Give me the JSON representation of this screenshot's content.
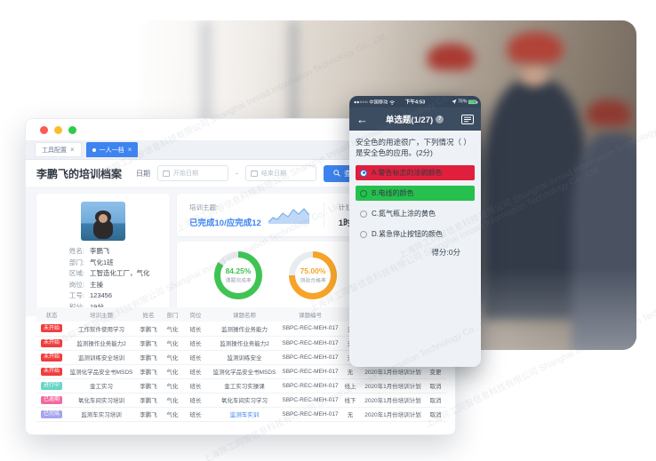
{
  "watermark": {
    "cn": "上海异工同智信息科技有限公司",
    "en": "Shanghai Inroad Information Technology Co., Ltd."
  },
  "desktop": {
    "tabs": [
      {
        "label": "工具配置",
        "close": "×",
        "active": false
      },
      {
        "label": "一人一档",
        "close": "×",
        "active": true
      }
    ],
    "toolbar": {
      "title": "李鹏飞的培训档案",
      "date_label": "日期",
      "start_placeholder": "开始日期",
      "end_placeholder": "结束日期",
      "range_separator": "-",
      "search_label": "查询"
    },
    "profile": {
      "fields": [
        {
          "label": "姓名:",
          "value": "李鹏飞"
        },
        {
          "label": "部门:",
          "value": "气化1班"
        },
        {
          "label": "区域:",
          "value": "工智造化工厂，气化"
        },
        {
          "label": "岗位:",
          "value": "主操"
        },
        {
          "label": "工号:",
          "value": "123456"
        },
        {
          "label": "积分:",
          "value": "19分"
        }
      ]
    },
    "summary": {
      "topic_label": "培训主题:",
      "topic_value": "已完成10/应完成12",
      "plan_label": "计划学习时长",
      "plan_value": "1时34分"
    },
    "donuts": [
      {
        "text": "84.25%",
        "value": 84.25,
        "label": "课题完成率",
        "color": "#3fc453"
      },
      {
        "text": "75.00%",
        "value": 75.0,
        "label": "测验合格率",
        "color": "#f5a429"
      }
    ],
    "table": {
      "headers": [
        "状态",
        "培训主题",
        "姓名",
        "部门",
        "岗位",
        "课题名称",
        "课题编号",
        "",
        "",
        ""
      ],
      "rows": [
        {
          "status": "未开始",
          "status_color": "#f23c3c",
          "topic": "工作软件使用学习",
          "name": "李鹏飞",
          "dept": "气化",
          "pos": "班长",
          "course": "监测操作业务能力",
          "link": false,
          "num": "SBPC-REC-MEH-017",
          "mode": "无",
          "plan": "2020年1月份培训计划",
          "op": "变更"
        },
        {
          "status": "未开始",
          "status_color": "#f23c3c",
          "topic": "监测操作业务能力2",
          "name": "李鹏飞",
          "dept": "气化",
          "pos": "班长",
          "course": "监测操作业务能力2",
          "link": false,
          "num": "SBPC-REC-MEH-017",
          "mode": "无",
          "plan": "2020年1月份培训计划",
          "op": "变更"
        },
        {
          "status": "未开始",
          "status_color": "#f23c3c",
          "topic": "监测训练安全培训",
          "name": "李鹏飞",
          "dept": "气化",
          "pos": "班长",
          "course": "监测训练安全",
          "link": false,
          "num": "SBPC-REC-MEH-017",
          "mode": "无",
          "plan": "2020年1月份培训计划",
          "op": "变更"
        },
        {
          "status": "未开始",
          "status_color": "#f23c3c",
          "topic": "监测化学品安全书MSDS",
          "name": "李鹏飞",
          "dept": "气化",
          "pos": "班长",
          "course": "监测化学品安全书MSDS",
          "link": false,
          "num": "SBPC-REC-MEH-017",
          "mode": "无",
          "plan": "2020年1月份培训计划",
          "op": "变更"
        },
        {
          "status": "进行中",
          "status_color": "#66d6c5",
          "topic": "金工实习",
          "name": "李鹏飞",
          "dept": "气化",
          "pos": "班长",
          "course": "金工实习实操课",
          "link": false,
          "num": "SBPC-REC-MEH-017",
          "mode": "线上",
          "plan": "2020年1月份培训计划",
          "op": "取消"
        },
        {
          "status": "已逾期",
          "status_color": "#f2699e",
          "topic": "氧化车间实习培训",
          "name": "李鹏飞",
          "dept": "气化",
          "pos": "班长",
          "course": "氧化车间实习学习",
          "link": false,
          "num": "SBPC-REC-MEH-017",
          "mode": "线下",
          "plan": "2020年1月份培训计划",
          "op": "取消"
        },
        {
          "status": "已完成",
          "status_color": "#a5a4f0",
          "topic": "监测车实习培训",
          "name": "李鹏飞",
          "dept": "气化",
          "pos": "班长",
          "course": "监测车实训",
          "link": true,
          "num": "SBPC-REC-MEH-017",
          "mode": "无",
          "plan": "2020年1月份培训计划",
          "op": "取消"
        }
      ]
    }
  },
  "phone": {
    "status": {
      "signal": "●●○○○",
      "carrier": "中国移动",
      "time": "下午4:53",
      "battery": "76%"
    },
    "nav": {
      "title": "单选题(1/27)",
      "help": "?"
    },
    "question": "安全色的用途很广，下列情况（ ）是安全色的应用。(2分)",
    "options": [
      {
        "text": "A.警告标志的涂刷颜色",
        "bg": "#e01f3c",
        "selected": true
      },
      {
        "text": "B.电线的颜色",
        "bg": "#27c04e",
        "selected": false
      },
      {
        "text": "C.氮气瓶上涂的黄色",
        "bg": "",
        "selected": false
      },
      {
        "text": "D.紧急停止按钮的颜色",
        "bg": "",
        "selected": false
      }
    ],
    "score": "得分:0分"
  }
}
